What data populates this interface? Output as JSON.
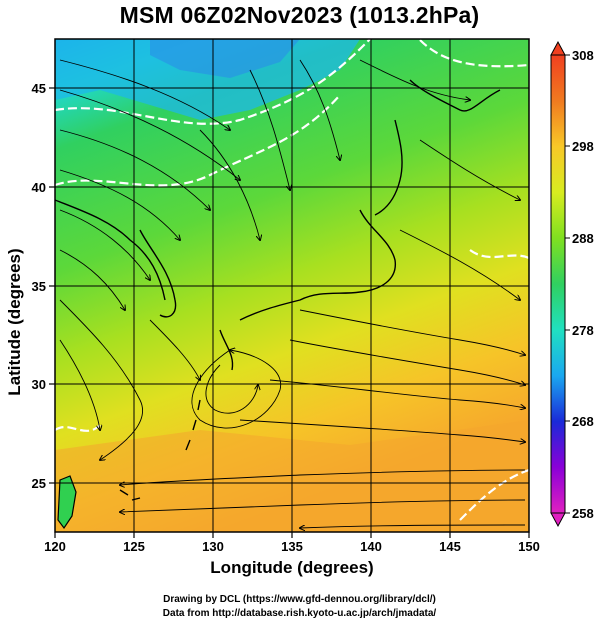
{
  "title": "MSM 06Z02Nov2023 (1013.2hPa)",
  "axes": {
    "xlabel": "Longitude (degrees)",
    "ylabel": "Latitude  (degrees)",
    "x_ticks": [
      "120",
      "125",
      "130",
      "135",
      "140",
      "145",
      "150"
    ],
    "y_ticks": [
      "25",
      "30",
      "35",
      "40",
      "45"
    ],
    "x_range": [
      120,
      150
    ],
    "y_range": [
      22.5,
      47.5
    ]
  },
  "colorbar": {
    "ticks": [
      "308",
      "298",
      "288",
      "278",
      "268",
      "258"
    ],
    "range": [
      258,
      308
    ],
    "colors": [
      "#e020c0",
      "#8a00d8",
      "#1a2ad8",
      "#1aa8f0",
      "#20e0c0",
      "#30d060",
      "#80e020",
      "#d8ec20",
      "#f8c828",
      "#f07a20",
      "#f04020"
    ]
  },
  "credits": {
    "line1": "Drawing by DCL (https://www.gfd-dennou.org/library/dcl/)",
    "line2": "Data from http://database.rish.kyoto-u.ac.jp/arch/jmadata/"
  }
}
